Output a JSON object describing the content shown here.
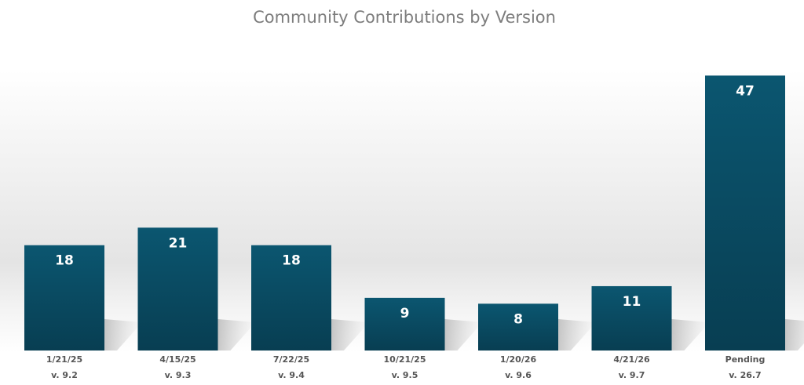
{
  "chart_data": {
    "type": "bar",
    "title": "Community Contributions by Version",
    "xlabel": "",
    "ylabel": "",
    "ylim": [
      0,
      50
    ],
    "grid": false,
    "legend": "none",
    "categories": [
      "1/21/25",
      "4/15/25",
      "7/22/25",
      "10/21/25",
      "1/20/26",
      "4/21/26",
      "Pending"
    ],
    "versions": [
      "v. 9.2",
      "v. 9.3",
      "v. 9.4",
      "v. 9.5",
      "v. 9.6",
      "v. 9.7",
      "v. 26.7"
    ],
    "values": [
      18,
      21,
      18,
      9,
      8,
      11,
      47
    ],
    "data_labels": [
      "18",
      "21",
      "18",
      "9",
      "8",
      "11",
      "47"
    ],
    "colors": {
      "bar_top": "#0b5670",
      "bar_bottom": "#083e52",
      "background_band": "#e6e6e6",
      "title": "#7d7d7d",
      "category_text": "#555555",
      "value_text": "#ffffff"
    }
  }
}
